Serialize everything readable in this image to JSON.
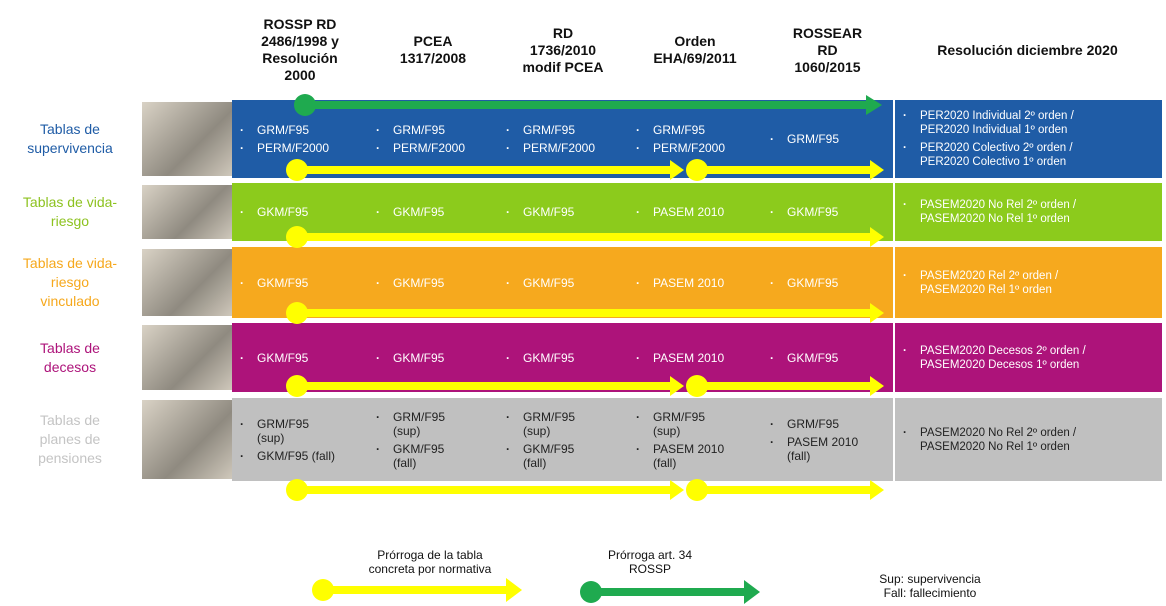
{
  "headers": {
    "columns": [
      "ROSSP RD\n2486/1998 y\nResolución\n2000",
      "PCEA\n1317/2008",
      "RD\n1736/2010\nmodif PCEA",
      "Orden\nEHA/69/2011",
      "ROSSEAR\nRD\n1060/2015",
      "Resolución diciembre 2020"
    ]
  },
  "rows": [
    {
      "label": "Tablas de\nsupervivencia",
      "cells": [
        [
          "GRM/F95",
          "PERM/F2000"
        ],
        [
          "GRM/F95",
          "PERM/F2000"
        ],
        [
          "GRM/F95",
          "PERM/F2000"
        ],
        [
          "GRM/F95",
          "PERM/F2000"
        ],
        [
          "GRM/F95"
        ],
        [
          "PER2020 Individual 2º orden /\nPER2020 Individual 1º orden",
          "PER2020 Colectivo 2º orden /\nPER2020 Colectivo 1º orden"
        ]
      ]
    },
    {
      "label": "Tablas de vida-\nriesgo",
      "cells": [
        [
          "GKM/F95"
        ],
        [
          "GKM/F95"
        ],
        [
          "GKM/F95"
        ],
        [
          "PASEM 2010"
        ],
        [
          "GKM/F95"
        ],
        [
          "PASEM2020 No Rel 2º orden /\nPASEM2020 No Rel 1º orden"
        ]
      ]
    },
    {
      "label": "Tablas de vida-\nriesgo\nvinculado",
      "cells": [
        [
          "GKM/F95"
        ],
        [
          "GKM/F95"
        ],
        [
          "GKM/F95"
        ],
        [
          "PASEM 2010"
        ],
        [
          "GKM/F95"
        ],
        [
          "PASEM2020 Rel 2º orden /\nPASEM2020 Rel 1º orden"
        ]
      ]
    },
    {
      "label": "Tablas de\ndecesos",
      "cells": [
        [
          "GKM/F95"
        ],
        [
          "GKM/F95"
        ],
        [
          "GKM/F95"
        ],
        [
          "PASEM 2010"
        ],
        [
          "GKM/F95"
        ],
        [
          "PASEM2020 Decesos 2º orden /\nPASEM2020 Decesos 1º orden"
        ]
      ]
    },
    {
      "label": "Tablas de\nplanes de\npensiones",
      "cells": [
        [
          "GRM/F95\n(sup)",
          "GKM/F95 (fall)"
        ],
        [
          "GRM/F95\n(sup)",
          "GKM/F95\n(fall)"
        ],
        [
          "GRM/F95\n(sup)",
          "GKM/F95\n(fall)"
        ],
        [
          "GRM/F95\n(sup)",
          "PASEM 2010\n(fall)"
        ],
        [
          "GRM/F95",
          "PASEM 2010\n(fall)"
        ],
        [
          "PASEM2020 No Rel 2º orden /\nPASEM2020 No Rel 1º orden"
        ]
      ]
    }
  ],
  "legend": {
    "yellow": "Prórroga de la tabla\nconcreta por normativa",
    "green": "Prórroga art. 34\nROSSP",
    "notes": "Sup: supervivencia\nFall: fallecimiento"
  }
}
